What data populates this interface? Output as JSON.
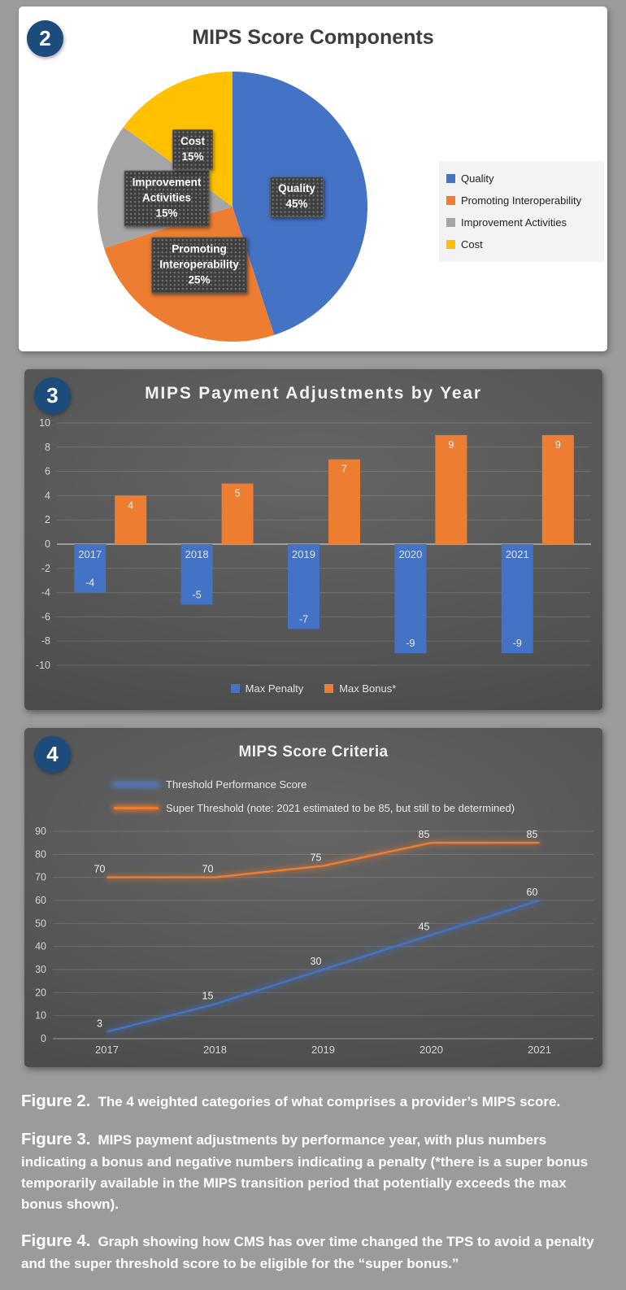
{
  "theme": {
    "badge_color": "#1C4C7C",
    "page_background": "#9B9B9B",
    "accent_blue": "#4472C4",
    "accent_orange": "#ED7D31",
    "accent_gray": "#A5A5A5",
    "accent_yellow": "#FFC000"
  },
  "figures": [
    {
      "badge": "2"
    },
    {
      "badge": "3"
    },
    {
      "badge": "4"
    }
  ],
  "chart_data": [
    {
      "type": "pie",
      "title": "MIPS Score Components",
      "labels": [
        "Quality",
        "Promoting Interoperability",
        "Improvement Activities",
        "Cost"
      ],
      "values": [
        45,
        25,
        15,
        15
      ],
      "colors": [
        "#4472C4",
        "#ED7D31",
        "#A5A5A5",
        "#FFC000"
      ],
      "slice_labels": [
        "Quality\n45%",
        "Promoting\nInteroperability\n25%",
        "Improvement\nActivities\n15%",
        "Cost\n15%"
      ],
      "legend_position": "right"
    },
    {
      "type": "bar",
      "title": "MIPS Payment Adjustments by Year",
      "categories": [
        "2017",
        "2018",
        "2019",
        "2020",
        "2021"
      ],
      "series": [
        {
          "name": "Max Penalty",
          "color": "#4472C4",
          "values": [
            -4,
            -5,
            -7,
            -9,
            -9
          ]
        },
        {
          "name": "Max Bonus*",
          "color": "#ED7D31",
          "values": [
            4,
            5,
            7,
            9,
            9
          ]
        }
      ],
      "ylim": [
        -10,
        10
      ],
      "ytick_step": 2,
      "grid": true,
      "legend_position": "bottom"
    },
    {
      "type": "line",
      "title": "MIPS Score Criteria",
      "x": [
        "2017",
        "2018",
        "2019",
        "2020",
        "2021"
      ],
      "series": [
        {
          "name": "Threshold Performance Score",
          "color": "#4472C4",
          "values": [
            3,
            15,
            30,
            45,
            60
          ]
        },
        {
          "name": "Super Threshold (note: 2021 estimated to be 85, but still to be determined)",
          "color": "#ED7D31",
          "values": [
            70,
            70,
            75,
            85,
            85
          ]
        }
      ],
      "ylim": [
        0,
        90
      ],
      "ytick_step": 10,
      "grid": true,
      "legend_position": "top-left"
    }
  ],
  "captions": [
    {
      "label": "Figure 2.",
      "text": "The 4 weighted categories of what comprises a provider’s MIPS score."
    },
    {
      "label": "Figure 3.",
      "text": "MIPS payment adjustments by performance year, with plus numbers indicating a bonus and negative numbers indicating a penalty (*there is a super bonus temporarily available in the MIPS transition period that potentially exceeds the max bonus shown)."
    },
    {
      "label": "Figure 4.",
      "text": "Graph showing how CMS has over time changed the TPS to avoid a penalty and the super threshold score to be eligible for the “super bonus.”"
    }
  ]
}
